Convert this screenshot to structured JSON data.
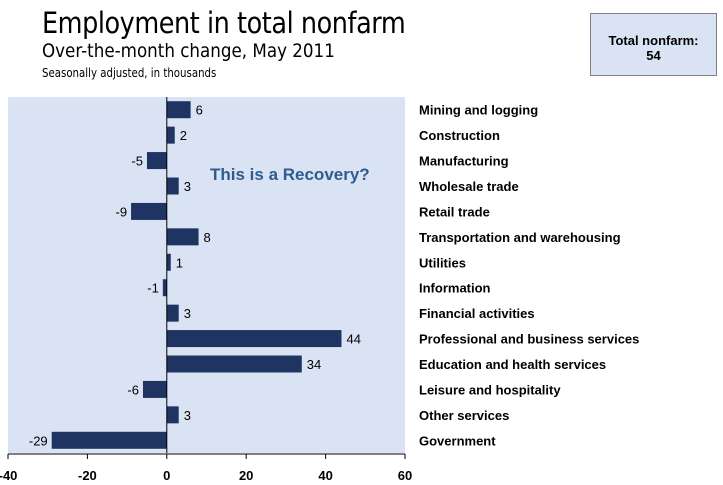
{
  "chart_data": {
    "type": "bar",
    "orientation": "horizontal",
    "title": "Employment in total nonfarm",
    "subtitle": "Over-the-month change, May 2011",
    "note": "Seasonally adjusted, in thousands",
    "annotation": "This is a Recovery?",
    "total_label": "Total nonfarm:",
    "total_value": "54",
    "categories": [
      "Mining and logging",
      "Construction",
      "Manufacturing",
      "Wholesale trade",
      "Retail trade",
      "Transportation and warehousing",
      "Utilities",
      "Information",
      "Financial activities",
      "Professional and business services",
      "Education and health services",
      "Leisure and hospitality",
      "Other services",
      "Government"
    ],
    "values": [
      6,
      2,
      -5,
      3,
      -9,
      8,
      1,
      -1,
      3,
      44,
      34,
      -6,
      3,
      -29
    ],
    "xlim": [
      -40,
      60
    ],
    "xticks": [
      -40,
      -20,
      0,
      20,
      40,
      60
    ],
    "grid": false,
    "colors": {
      "bar": "#1f3462",
      "plot_bg": "#dae3f3",
      "annotation": "#2f5b8f"
    }
  }
}
